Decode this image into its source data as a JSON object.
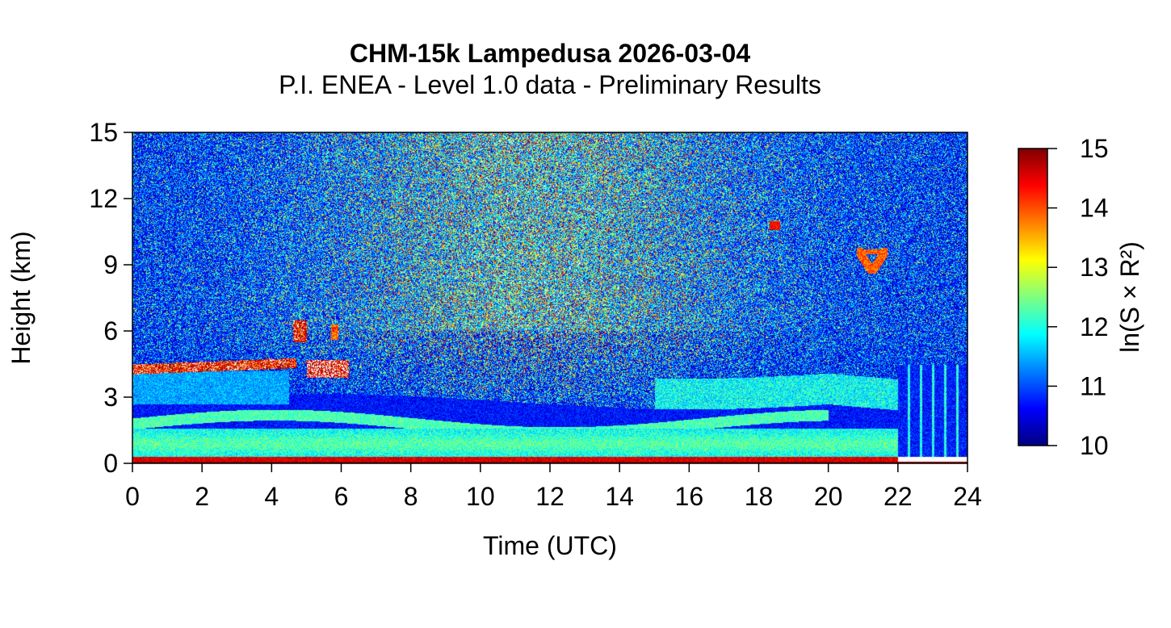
{
  "chart_data": {
    "type": "heatmap",
    "title": "CHM-15k Lampedusa 2026-03-04",
    "subtitle": "P.I. ENEA - Level 1.0 data - Preliminary Results",
    "xlabel": "Time (UTC)",
    "ylabel": "Height (km)",
    "xlim": [
      0,
      24
    ],
    "ylim": [
      0,
      15
    ],
    "x_ticks": [
      "0",
      "2",
      "4",
      "6",
      "8",
      "10",
      "12",
      "14",
      "16",
      "18",
      "20",
      "22",
      "24"
    ],
    "y_ticks": [
      "0",
      "3",
      "6",
      "9",
      "12",
      "15"
    ],
    "colorbar": {
      "label": "ln(S × R²)",
      "range": [
        10,
        15
      ],
      "ticks": [
        "10",
        "11",
        "12",
        "13",
        "14",
        "15"
      ],
      "colors": [
        "#00007f",
        "#0000ff",
        "#007fff",
        "#00ffff",
        "#7fff7f",
        "#ffff00",
        "#ff7f00",
        "#ff0000",
        "#7f0000"
      ]
    },
    "features": [
      {
        "kind": "cloud",
        "x": [
          0,
          6.2
        ],
        "y": [
          4.1,
          4.7
        ],
        "value": 14.5
      },
      {
        "kind": "cloud",
        "x": [
          4.6,
          5.0
        ],
        "y": [
          5.5,
          6.5
        ],
        "value": 14
      },
      {
        "kind": "cloud",
        "x": [
          20.8,
          21.6
        ],
        "y": [
          8.7,
          9.7
        ],
        "value": 14
      },
      {
        "kind": "aerosol-layer",
        "x": [
          0,
          22
        ],
        "y": [
          1.0,
          2.4
        ],
        "value": 12
      },
      {
        "kind": "surface-layer",
        "x": [
          0,
          24
        ],
        "y": [
          0,
          0.3
        ],
        "value": 14.5
      }
    ]
  }
}
